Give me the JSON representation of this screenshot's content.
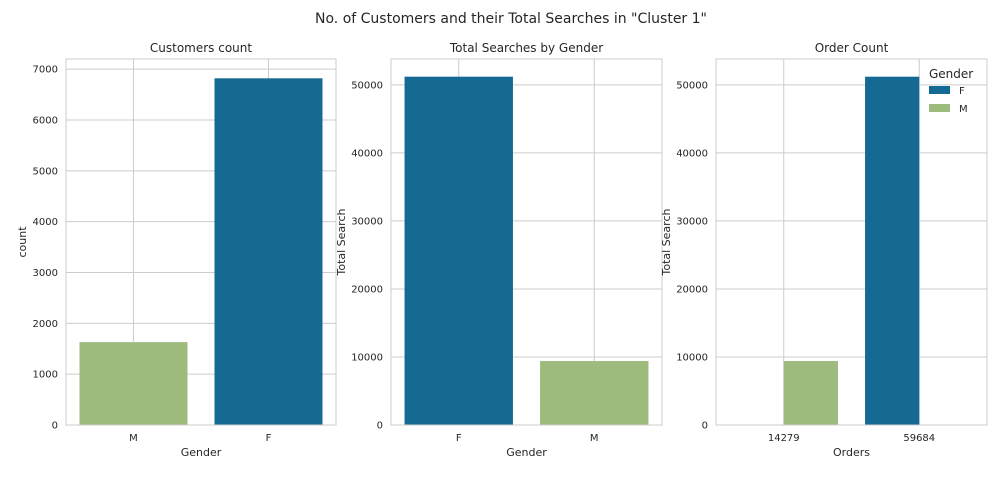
{
  "figure_title": "No. of Customers and their Total Searches in \"Cluster 1\"",
  "colors": {
    "F": "#156a93",
    "M": "#9cbb7c"
  },
  "chart_data": [
    {
      "type": "bar",
      "title": "Customers count",
      "xlabel": "Gender",
      "ylabel": "count",
      "categories": [
        "M",
        "F"
      ],
      "values": [
        1630,
        6820
      ],
      "bar_groups": [
        "M",
        "F"
      ],
      "ylim": [
        0,
        7200
      ],
      "yticks": [
        0,
        1000,
        2000,
        3000,
        4000,
        5000,
        6000,
        7000
      ],
      "grid": true
    },
    {
      "type": "bar",
      "title": "Total Searches by Gender",
      "xlabel": "Gender",
      "ylabel": "Total Search",
      "categories": [
        "F",
        "M"
      ],
      "values": [
        51200,
        9400
      ],
      "bar_groups": [
        "F",
        "M"
      ],
      "ylim": [
        0,
        53800
      ],
      "yticks": [
        0,
        10000,
        20000,
        30000,
        40000,
        50000
      ],
      "grid": true
    },
    {
      "type": "bar",
      "title": "Order Count",
      "xlabel": "Orders",
      "ylabel": "Total Search",
      "categories": [
        "14279",
        "59684"
      ],
      "series": [
        {
          "name": "F",
          "values": [
            0,
            51200
          ]
        },
        {
          "name": "M",
          "values": [
            9400,
            0
          ]
        }
      ],
      "ylim": [
        0,
        53800
      ],
      "yticks": [
        0,
        10000,
        20000,
        30000,
        40000,
        50000
      ],
      "grid": true,
      "legend": {
        "title": "Gender",
        "entries": [
          "F",
          "M"
        ],
        "placement": "top-right"
      }
    }
  ]
}
